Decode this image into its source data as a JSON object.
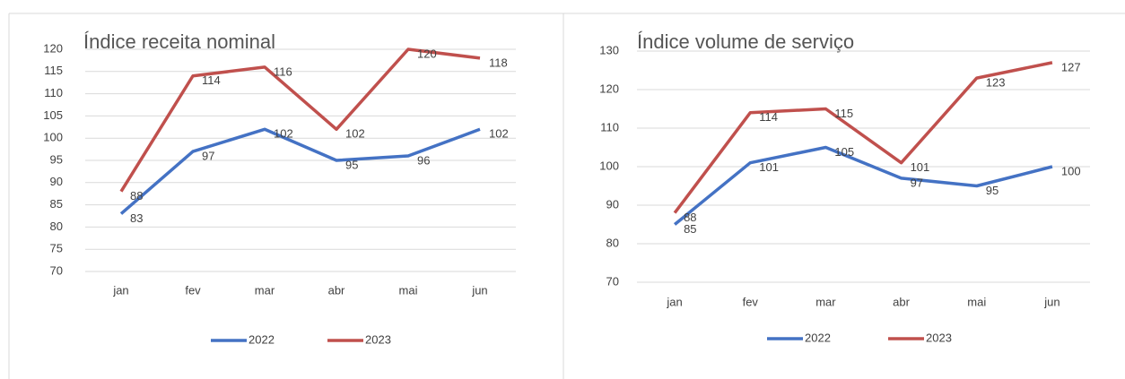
{
  "chart_data": [
    {
      "type": "line",
      "title": "Índice receita nominal",
      "categories": [
        "jan",
        "fev",
        "mar",
        "abr",
        "mai",
        "jun"
      ],
      "series": [
        {
          "name": "2022",
          "color": "#4472c4",
          "values": [
            83,
            97,
            102,
            95,
            96,
            102
          ]
        },
        {
          "name": "2023",
          "color": "#c0504d",
          "values": [
            88,
            114,
            116,
            102,
            120,
            118
          ]
        }
      ],
      "ylim": [
        70,
        120
      ],
      "yticks": [
        70,
        75,
        80,
        85,
        90,
        95,
        100,
        105,
        110,
        115,
        120
      ],
      "grid": true,
      "legend": "bottom"
    },
    {
      "type": "line",
      "title": "Índice volume de serviço",
      "categories": [
        "jan",
        "fev",
        "mar",
        "abr",
        "mai",
        "jun"
      ],
      "series": [
        {
          "name": "2022",
          "color": "#4472c4",
          "values": [
            85,
            101,
            105,
            97,
            95,
            100
          ]
        },
        {
          "name": "2023",
          "color": "#c0504d",
          "values": [
            88,
            114,
            115,
            101,
            123,
            127
          ]
        }
      ],
      "ylim": [
        70,
        130
      ],
      "yticks": [
        70,
        80,
        90,
        100,
        110,
        120,
        130
      ],
      "grid": true,
      "legend": "bottom"
    }
  ]
}
